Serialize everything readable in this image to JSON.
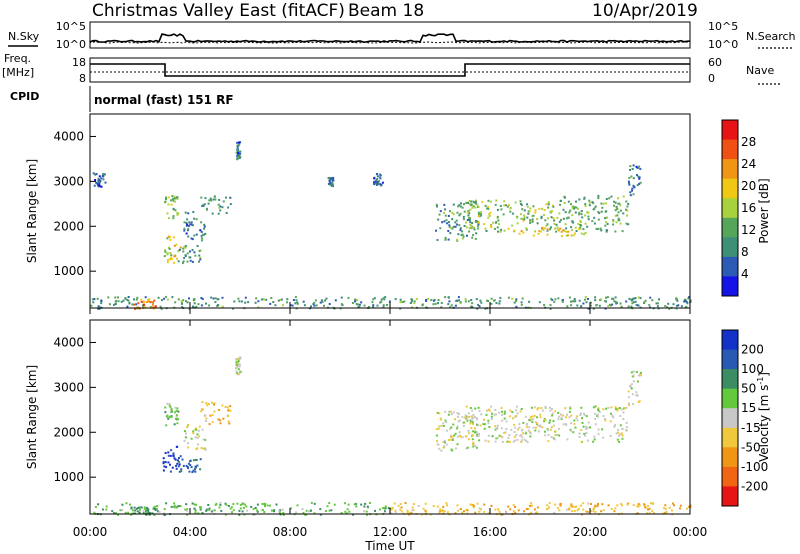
{
  "header": {
    "title": "Christmas Valley East (fitACF)",
    "beam": "Beam 18",
    "date": "10/Apr/2019"
  },
  "top_panels": {
    "nsky_label": "N.Sky",
    "nsky_tick_top": "10^5",
    "nsky_tick_bottom": "10^0",
    "nsearch_label": "N.Search",
    "nsearch_tick_top": "10^5",
    "nsearch_tick_bottom": "10^0",
    "freq_label": "Freq.",
    "freq_unit": "[MHz]",
    "freq_tick_top": "18",
    "freq_tick_bottom": "8",
    "nave_label": "Nave",
    "nave_tick_top": "60",
    "nave_tick_bottom": "0",
    "cpid_label": "CPID",
    "cpid_text": "normal (fast) 151 RF"
  },
  "chart_data": [
    {
      "type": "heatmap",
      "name": "power",
      "x": [
        0,
        24
      ],
      "xlabel": "",
      "ylabel": "Slant Range [km]",
      "ylim": [
        180,
        4500
      ],
      "yticks": [
        "1000",
        "2000",
        "3000",
        "4000"
      ],
      "colorbar_label": "Power [dB]",
      "colorbar_ticks": [
        "4",
        "8",
        "12",
        "16",
        "20",
        "24",
        "28"
      ],
      "colorbar_range": [
        0,
        32
      ],
      "colors": [
        "#1414e6",
        "#2c5ab4",
        "#3f8e78",
        "#55a55a",
        "#a8d23c",
        "#f0c814",
        "#f09614",
        "#f05014",
        "#e61414"
      ],
      "grid": false,
      "regions": [
        {
          "t": [
            2.9,
            3.6
          ],
          "r": [
            1200,
            1800
          ],
          "v": 18
        },
        {
          "t": [
            3.5,
            4.4
          ],
          "r": [
            1200,
            1600
          ],
          "v": 10
        },
        {
          "t": [
            2.9,
            3.5
          ],
          "r": [
            2200,
            2700
          ],
          "v": 14
        },
        {
          "t": [
            3.7,
            4.6
          ],
          "r": [
            1700,
            2400
          ],
          "v": 8
        },
        {
          "t": [
            4.4,
            5.6
          ],
          "r": [
            2300,
            2700
          ],
          "v": 10
        },
        {
          "t": [
            5.8,
            6.0
          ],
          "r": [
            3500,
            3900
          ],
          "v": 8
        },
        {
          "t": [
            13.8,
            15.5
          ],
          "r": [
            1700,
            2600
          ],
          "v": 10
        },
        {
          "t": [
            15.0,
            18.5
          ],
          "r": [
            1900,
            2600
          ],
          "v": 14
        },
        {
          "t": [
            18.5,
            21.5
          ],
          "r": [
            1900,
            2700
          ],
          "v": 12
        },
        {
          "t": [
            17.0,
            20.0
          ],
          "r": [
            1800,
            2000
          ],
          "v": 20
        },
        {
          "t": [
            21.5,
            22.0
          ],
          "r": [
            2700,
            3400
          ],
          "v": 8
        },
        {
          "t": [
            0.1,
            0.6
          ],
          "r": [
            2900,
            3200
          ],
          "v": 6
        },
        {
          "t": [
            9.5,
            9.7
          ],
          "r": [
            2900,
            3100
          ],
          "v": 8
        },
        {
          "t": [
            11.3,
            11.7
          ],
          "r": [
            2900,
            3200
          ],
          "v": 6
        },
        {
          "t": [
            0,
            24
          ],
          "r": [
            180,
            450
          ],
          "v": 10
        },
        {
          "t": [
            1.6,
            2.6
          ],
          "r": [
            180,
            400
          ],
          "v": 24
        }
      ]
    },
    {
      "type": "heatmap",
      "name": "velocity",
      "x": [
        0,
        24
      ],
      "xlabel": "Time UT",
      "xticks": [
        "00:00",
        "04:00",
        "08:00",
        "12:00",
        "16:00",
        "20:00",
        "00:00"
      ],
      "ylabel": "Slant Range [km]",
      "ylim": [
        180,
        4500
      ],
      "yticks": [
        "1000",
        "2000",
        "3000",
        "4000"
      ],
      "colorbar_label": "Velocity [m s",
      "colorbar_label_sup": "-1",
      "colorbar_label_end": "]",
      "colorbar_ticks": [
        "200",
        "100",
        "50",
        "15",
        "-15",
        "-50",
        "-100",
        "-200"
      ],
      "colors": [
        "#1432c8",
        "#285ab4",
        "#3c8c64",
        "#64c83c",
        "#c8c8c8",
        "#f0c83c",
        "#f09614",
        "#f06414",
        "#e61414"
      ],
      "grid": false,
      "regions": [
        {
          "t": [
            2.9,
            3.6
          ],
          "r": [
            1100,
            1700
          ],
          "v": 220
        },
        {
          "t": [
            3.5,
            4.4
          ],
          "r": [
            1100,
            1500
          ],
          "v": 120
        },
        {
          "t": [
            2.9,
            3.5
          ],
          "r": [
            2100,
            2700
          ],
          "v": 40
        },
        {
          "t": [
            3.7,
            4.6
          ],
          "r": [
            1600,
            2200
          ],
          "v": 0
        },
        {
          "t": [
            4.4,
            5.6
          ],
          "r": [
            2200,
            2700
          ],
          "v": -40
        },
        {
          "t": [
            5.8,
            6.0
          ],
          "r": [
            3300,
            3700
          ],
          "v": 0
        },
        {
          "t": [
            13.8,
            15.5
          ],
          "r": [
            1600,
            2500
          ],
          "v": 0
        },
        {
          "t": [
            15.0,
            21.5
          ],
          "r": [
            1800,
            2600
          ],
          "v": 0
        },
        {
          "t": [
            21.5,
            22.0
          ],
          "r": [
            2600,
            3400
          ],
          "v": 0
        },
        {
          "t": [
            0,
            12
          ],
          "r": [
            180,
            450
          ],
          "v": 40
        },
        {
          "t": [
            12,
            24
          ],
          "r": [
            180,
            450
          ],
          "v": -40
        },
        {
          "t": [
            1.6,
            2.6
          ],
          "r": [
            180,
            350
          ],
          "v": 60
        }
      ]
    }
  ]
}
